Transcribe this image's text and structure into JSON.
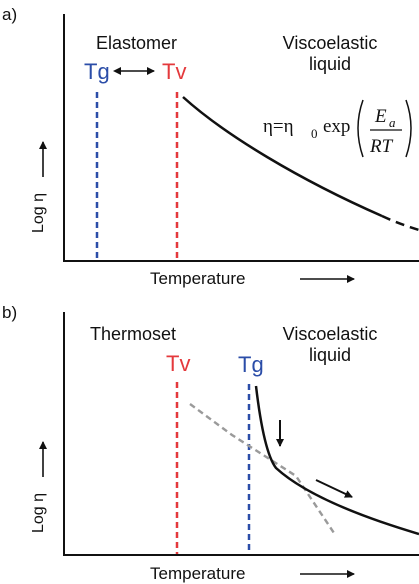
{
  "panel_a": {
    "label": "a)",
    "y_axis_label": "Log η",
    "x_axis_label": "Temperature",
    "region_left": "Elastomer",
    "region_right_line1": "Viscoelastic",
    "region_right_line2": "liquid",
    "tg": "Tg",
    "tv": "Tv",
    "equation": {
      "lhs": "η=η",
      "lhs_sub": "0",
      "func": "exp",
      "numerator": "E",
      "numerator_sub": "a",
      "denominator": "RT"
    }
  },
  "panel_b": {
    "label": "b)",
    "y_axis_label": "Log η",
    "x_axis_label": "Temperature",
    "region_left": "Thermoset",
    "region_right_line1": "Viscoelastic",
    "region_right_line2": "liquid",
    "tv": "Tv",
    "tg": "Tg"
  },
  "colors": {
    "tg": "#2B4DA8",
    "tv": "#E4393C",
    "curve": "#111111",
    "dashed_gray": "#9A9A9A"
  }
}
